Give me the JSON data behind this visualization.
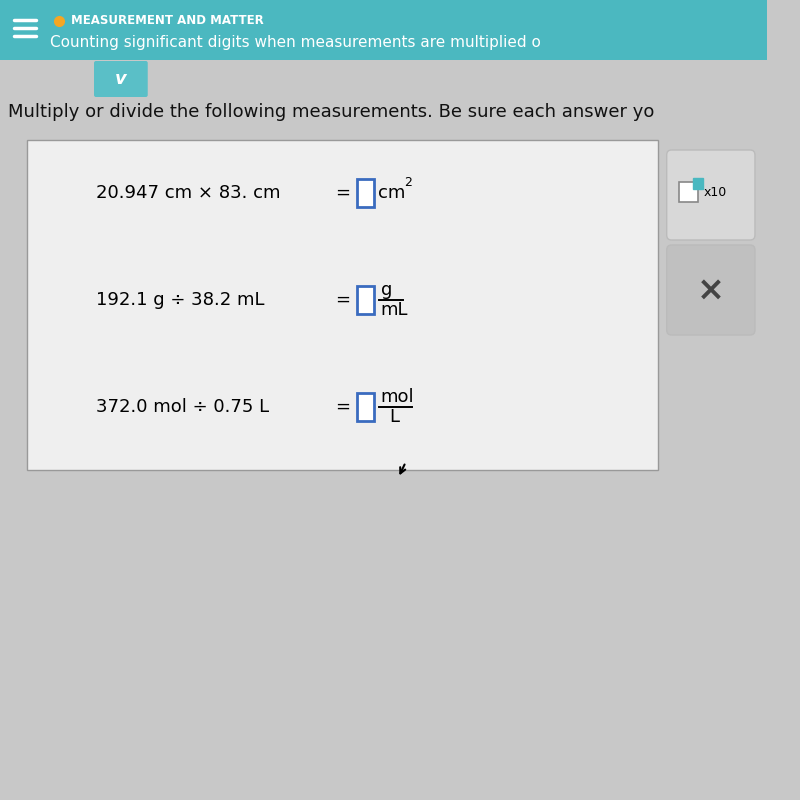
{
  "bg_color": "#c8c8c8",
  "header_bg": "#4bb8c0",
  "header_orange_dot_color": "#f5a623",
  "header_title": "MEASUREMENT AND MATTER",
  "header_subtitle": "Counting significant digits when measurements are multiplied o",
  "chevron_bg": "#5abfc7",
  "instruction_text": "Multiply or divide the following measurements. Be sure each answer yo",
  "box_bg": "#efefef",
  "box_border": "#999999",
  "equation1": "20.947 cm × 83. cm",
  "unit1_num": "cm",
  "unit1_superscript": "2",
  "equation2": "192.1 g ÷ 38.2 mL",
  "unit2_num": "g",
  "unit2_den": "mL",
  "equation3": "372.0 mol ÷ 0.75 L",
  "unit3_num": "mol",
  "unit3_den": "L",
  "input_box_color": "#3a6bbf",
  "side_panel_bg": "#d8d8d8",
  "side_panel_border": "#bbbbbb",
  "side_box_border": "#3a6bbf",
  "side_box_fill": "#4ab8c0",
  "x10_label": "x10",
  "x_button_color": "#444444",
  "x_button_bg": "#c0c0c0",
  "cursor_color": "#111111"
}
